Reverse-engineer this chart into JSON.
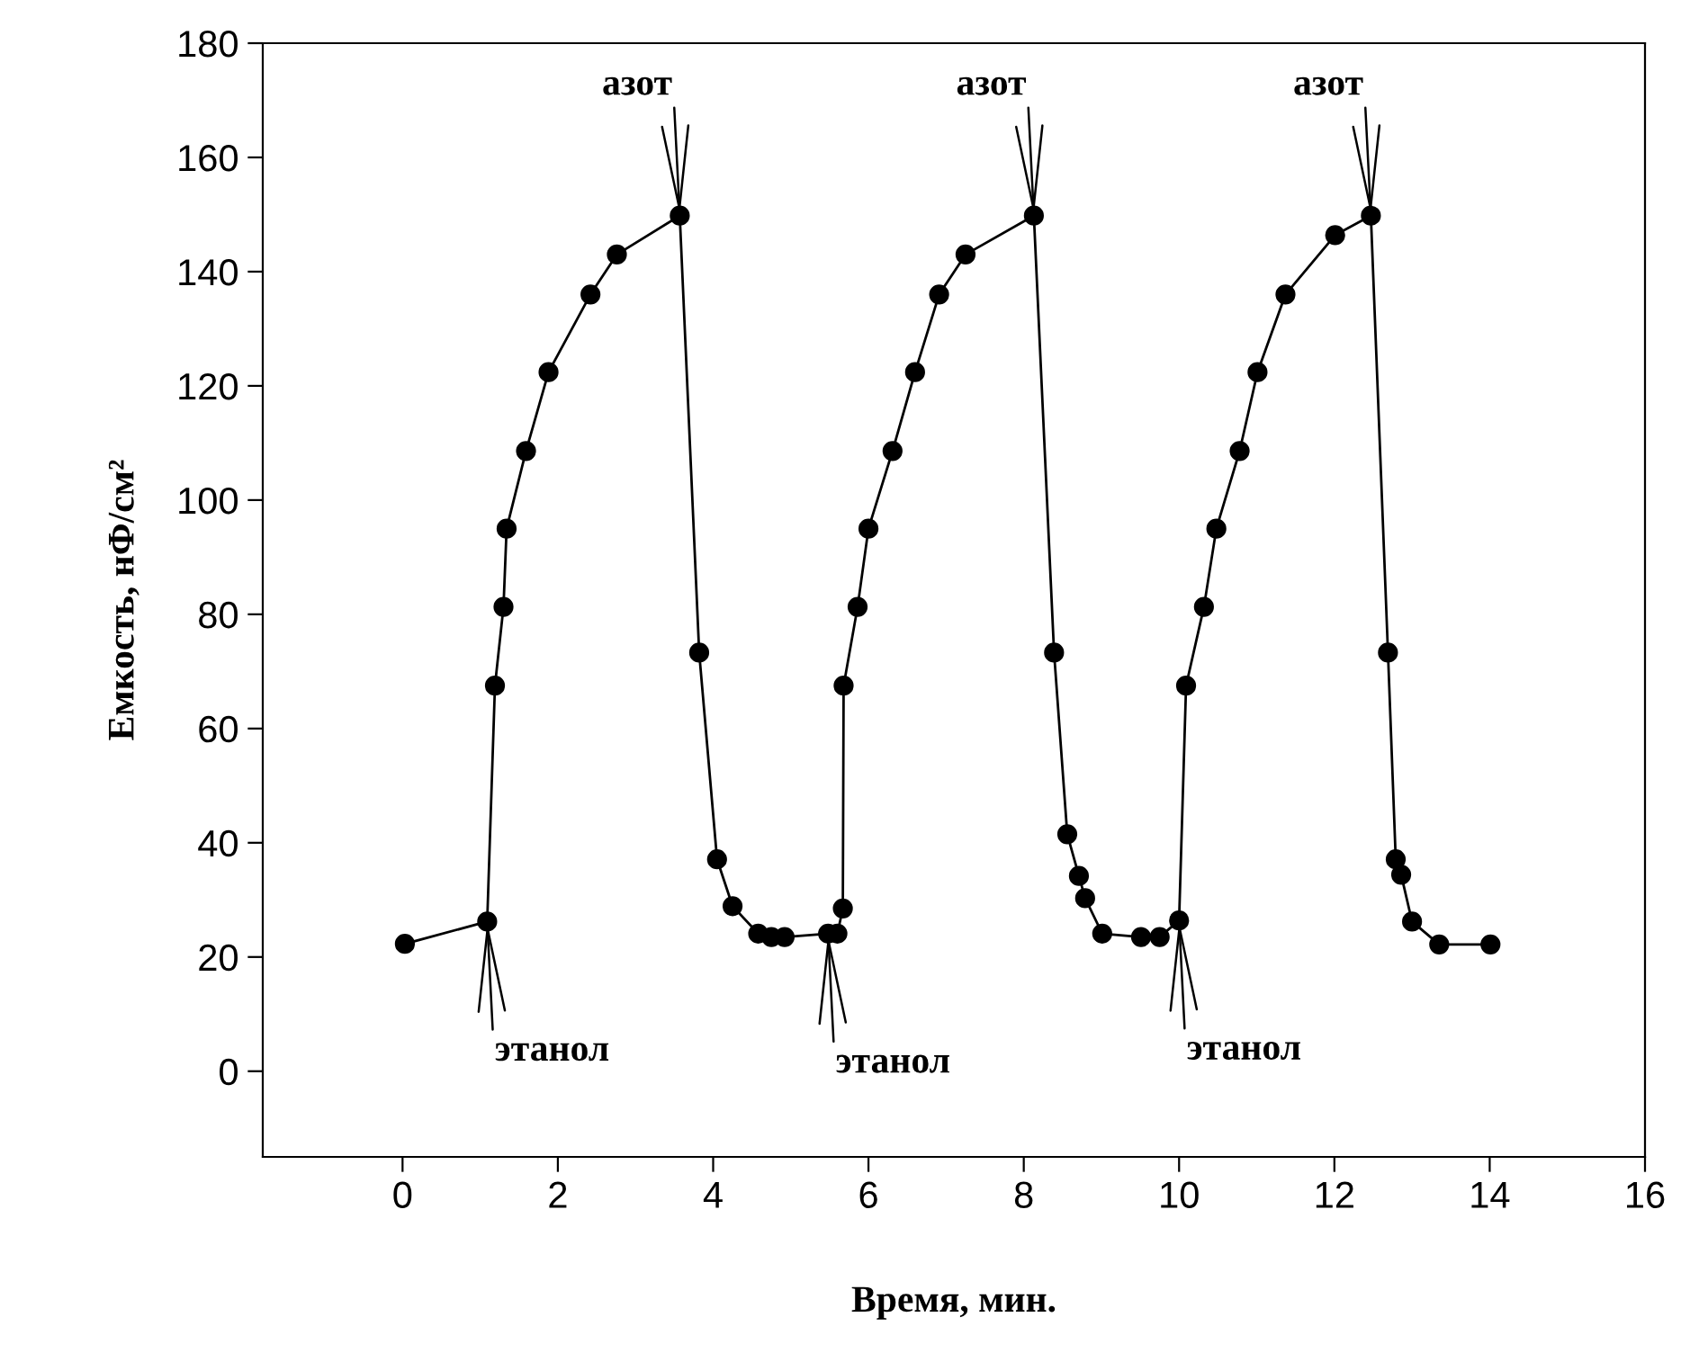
{
  "chart_data": {
    "type": "line",
    "xlabel": "Время, мин.",
    "ylabel": "Емкость, нФ/см²",
    "xlim": [
      -1.8,
      16
    ],
    "ylim": [
      -15,
      180
    ],
    "xticks": [
      0,
      2,
      4,
      6,
      8,
      10,
      12,
      14,
      16
    ],
    "yticks": [
      0,
      20,
      40,
      60,
      80,
      100,
      120,
      140,
      160,
      180
    ],
    "grid": false,
    "marker": "circle",
    "line_style": "solid",
    "series": [
      {
        "color": "#000000",
        "x": [
          0.03,
          1.09,
          1.19,
          1.3,
          1.34,
          1.59,
          1.88,
          2.42,
          2.76,
          3.57,
          3.82,
          4.05,
          4.25,
          4.58,
          4.75,
          4.92,
          5.48,
          5.6,
          5.67,
          5.68,
          5.86,
          6.0,
          6.31,
          6.6,
          6.91,
          7.25,
          8.13,
          8.39,
          8.56,
          8.71,
          8.79,
          9.01,
          9.51,
          9.75,
          10.0,
          10.09,
          10.32,
          10.48,
          10.78,
          11.01,
          11.37,
          12.01,
          12.47,
          12.69,
          12.79,
          12.86,
          13.0,
          13.35,
          14.01
        ],
        "values": [
          22.3,
          26.2,
          67.5,
          81.3,
          95,
          108.6,
          122.4,
          136,
          143,
          149.8,
          73.3,
          37.1,
          28.9,
          24.1,
          23.5,
          23.5,
          24.1,
          24.1,
          28.5,
          67.5,
          81.3,
          95,
          108.6,
          122.4,
          136,
          143,
          149.8,
          73.3,
          41.5,
          34.2,
          30.3,
          24.1,
          23.5,
          23.5,
          26.4,
          67.5,
          81.3,
          95,
          108.6,
          122.4,
          136,
          146.4,
          149.8,
          73.3,
          37.1,
          34.4,
          26.2,
          22.2,
          22.2
        ]
      }
    ],
    "annotations": [
      {
        "text": "азот",
        "x": 3.57,
        "y": 149.8
      },
      {
        "text": "азот",
        "x": 8.13,
        "y": 149.8
      },
      {
        "text": "азот",
        "x": 12.47,
        "y": 149.8
      },
      {
        "text": "этанол",
        "x": 1.09,
        "y": 26.2
      },
      {
        "text": "этанол",
        "x": 5.48,
        "y": 24.1
      },
      {
        "text": "этанол",
        "x": 10.0,
        "y": 26.4
      }
    ]
  }
}
